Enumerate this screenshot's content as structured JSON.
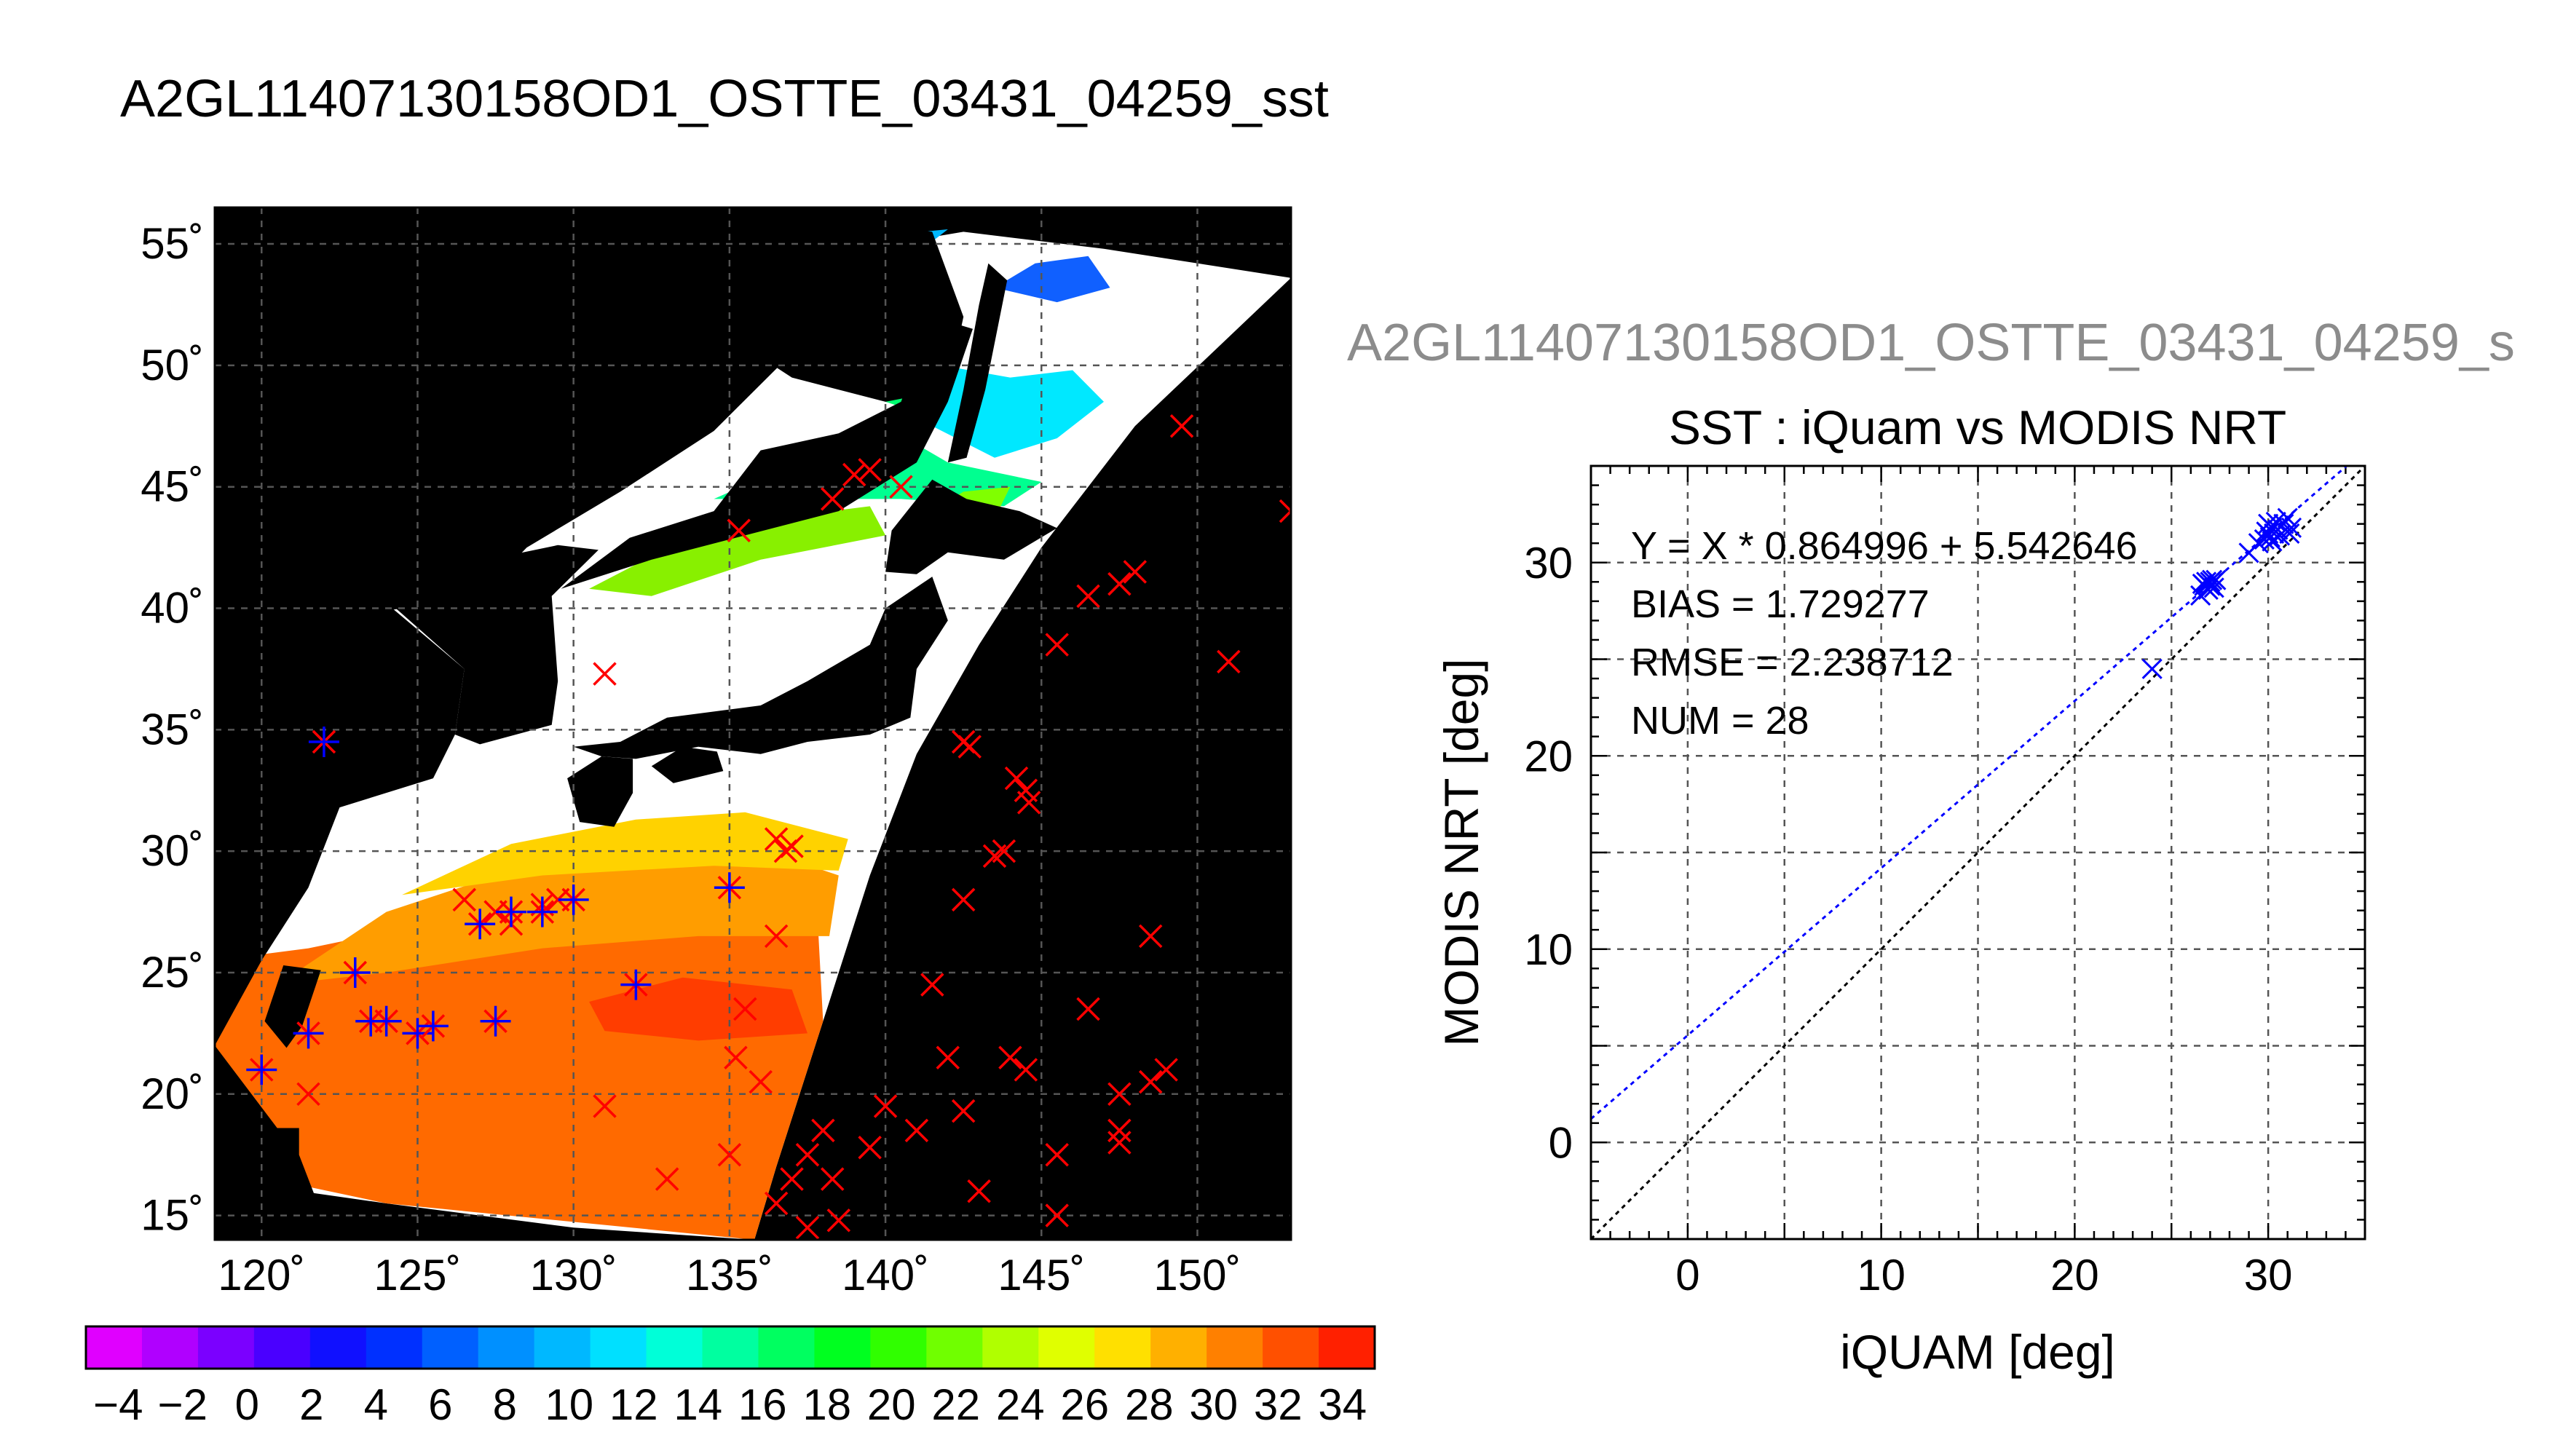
{
  "figure": {
    "title": "A2GL11407130158OD1_OSTTE_03431_04259_sst",
    "ghost_title": "A2GL11407130158OD1_OSTTE_03431_04259_s"
  },
  "colors": {
    "land": "#000000",
    "cloud": "#ffffff",
    "grid": "#555555",
    "insitu_out": "#ff0000",
    "insitu_in": "#0000ff",
    "regression_line": "#0000ff",
    "one_to_one_line": "#000000"
  },
  "chart_data": [
    {
      "type": "scatter",
      "subtype": "map",
      "title": "",
      "xlabel": "",
      "ylabel": "",
      "xlim": [
        118.5,
        153
      ],
      "ylim": [
        14,
        56.5
      ],
      "x_ticks": [
        120,
        125,
        130,
        135,
        140,
        145,
        150
      ],
      "y_ticks": [
        15,
        20,
        25,
        30,
        35,
        40,
        45,
        50,
        55
      ],
      "x_tick_labels": [
        "120˚",
        "125˚",
        "130˚",
        "135˚",
        "140˚",
        "145˚",
        "150˚"
      ],
      "y_tick_labels": [
        "15˚",
        "20˚",
        "25˚",
        "30˚",
        "35˚",
        "40˚",
        "45˚",
        "50˚",
        "55˚"
      ],
      "grid": true,
      "colorbar": {
        "min": -5,
        "max": 35,
        "ticks": [
          -4,
          -2,
          0,
          2,
          4,
          6,
          8,
          10,
          12,
          14,
          16,
          18,
          20,
          22,
          24,
          26,
          28,
          30,
          32,
          34
        ],
        "tick_labels": [
          "−4",
          "−2",
          "0",
          "2",
          "4",
          "6",
          "8",
          "10",
          "12",
          "14",
          "16",
          "18",
          "20",
          "22",
          "24",
          "26",
          "28",
          "30",
          "32",
          "34"
        ],
        "colors": [
          "#e000ff",
          "#b000ff",
          "#7b00ff",
          "#4a00ff",
          "#1010ff",
          "#0030ff",
          "#0060ff",
          "#0090ff",
          "#00b8ff",
          "#00e0ff",
          "#00ffd8",
          "#00ffa0",
          "#00ff60",
          "#00ff20",
          "#30ff00",
          "#70ff00",
          "#b0ff00",
          "#e0ff00",
          "#ffe000",
          "#ffb000",
          "#ff8000",
          "#ff5000",
          "#ff2000"
        ]
      },
      "series": [
        {
          "marker": "x",
          "color": "#ff0000",
          "points": [
            [
              136.0,
              20.5
            ],
            [
              135.5,
              23.5
            ],
            [
              135.2,
              21.5
            ],
            [
              136.5,
              26.5
            ],
            [
              139.0,
              45.5
            ],
            [
              138.3,
              44.5
            ],
            [
              139.5,
              45.7
            ],
            [
              140.5,
              45.0
            ],
            [
              135.3,
              43.2
            ],
            [
              131.0,
              37.3
            ],
            [
              141.5,
              24.5
            ],
            [
              142.0,
              21.5
            ],
            [
              140.0,
              19.5
            ],
            [
              141.0,
              18.5
            ],
            [
              142.5,
              19.3
            ],
            [
              138.3,
              16.5
            ],
            [
              138.0,
              18.5
            ],
            [
              137.5,
              17.5
            ],
            [
              139.5,
              17.8
            ],
            [
              137.0,
              16.5
            ],
            [
              136.5,
              15.5
            ],
            [
              137.5,
              14.5
            ],
            [
              138.5,
              14.8
            ],
            [
              135.0,
              17.5
            ],
            [
              133.0,
              16.5
            ],
            [
              131.0,
              19.5
            ],
            [
              144.0,
              21.5
            ],
            [
              144.5,
              21.0
            ],
            [
              145.5,
              17.5
            ],
            [
              145.5,
              15.0
            ],
            [
              143.0,
              16.0
            ],
            [
              146.5,
              23.5
            ],
            [
              147.5,
              20.0
            ],
            [
              147.5,
              18.5
            ],
            [
              147.5,
              18.0
            ],
            [
              148.5,
              20.5
            ],
            [
              149.0,
              21.0
            ],
            [
              148.5,
              26.5
            ],
            [
              146.5,
              40.5
            ],
            [
              147.5,
              41.0
            ],
            [
              148.0,
              41.5
            ],
            [
              145.5,
              38.5
            ],
            [
              151.0,
              37.8
            ],
            [
              149.5,
              47.5
            ],
            [
              153.0,
              44.0
            ],
            [
              142.5,
              34.5
            ],
            [
              142.7,
              34.3
            ],
            [
              144.2,
              33.0
            ],
            [
              144.5,
              32.5
            ],
            [
              144.6,
              32.0
            ],
            [
              143.8,
              30.0
            ],
            [
              143.5,
              29.8
            ],
            [
              142.5,
              28.0
            ],
            [
              136.5,
              30.5
            ],
            [
              136.8,
              30.0
            ],
            [
              137.0,
              30.2
            ],
            [
              126.5,
              28.0
            ],
            [
              127.5,
              27.5
            ],
            [
              128.0,
              27.0
            ],
            [
              129.0,
              27.8
            ],
            [
              129.5,
              28.0
            ],
            [
              121.5,
              20.0
            ]
          ]
        },
        {
          "marker": "x+cross",
          "color": "#0000ff",
          "points": [
            [
              122.0,
              34.5
            ],
            [
              120.0,
              21.0
            ],
            [
              121.5,
              22.5
            ],
            [
              123.0,
              25.0
            ],
            [
              123.5,
              23.0
            ],
            [
              124.0,
              23.0
            ],
            [
              125.0,
              22.5
            ],
            [
              125.5,
              22.8
            ],
            [
              127.5,
              23.0
            ],
            [
              127.0,
              27.0
            ],
            [
              128.0,
              27.5
            ],
            [
              129.0,
              27.5
            ],
            [
              130.0,
              28.0
            ],
            [
              132.0,
              24.5
            ],
            [
              135.0,
              28.5
            ]
          ]
        }
      ]
    },
    {
      "type": "scatter",
      "title": "SST : iQuam vs MODIS NRT",
      "xlabel": "iQUAM [deg]",
      "ylabel": "MODIS NRT [deg]",
      "xlim": [
        -5,
        35
      ],
      "ylim": [
        -5,
        35
      ],
      "x_ticks": [
        0,
        10,
        20,
        30
      ],
      "y_ticks": [
        0,
        10,
        20,
        30
      ],
      "grid": true,
      "annotations": [
        "Y = X * 0.864996 + 5.542646",
        "BIAS = 1.729277",
        "RMSE = 2.238712",
        "NUM = 28"
      ],
      "regression": {
        "slope": 0.864996,
        "intercept": 5.542646
      },
      "points": [
        [
          24.0,
          24.5
        ],
        [
          26.5,
          28.3
        ],
        [
          26.7,
          28.8
        ],
        [
          26.8,
          29.0
        ],
        [
          27.0,
          28.8
        ],
        [
          27.2,
          28.7
        ],
        [
          27.0,
          29.0
        ],
        [
          27.3,
          29.1
        ],
        [
          26.9,
          28.6
        ],
        [
          29.0,
          30.5
        ],
        [
          29.8,
          31.2
        ],
        [
          30.0,
          31.5
        ],
        [
          30.2,
          31.8
        ],
        [
          30.0,
          32.0
        ],
        [
          30.3,
          31.5
        ],
        [
          30.5,
          31.7
        ],
        [
          30.8,
          32.0
        ],
        [
          31.0,
          32.3
        ],
        [
          31.2,
          31.8
        ],
        [
          29.5,
          31.0
        ],
        [
          30.1,
          31.3
        ],
        [
          30.4,
          32.1
        ],
        [
          26.6,
          28.9
        ],
        [
          27.1,
          29.1
        ],
        [
          30.6,
          31.4
        ],
        [
          29.9,
          31.6
        ],
        [
          30.2,
          31.1
        ],
        [
          31.1,
          31.5
        ]
      ]
    }
  ]
}
